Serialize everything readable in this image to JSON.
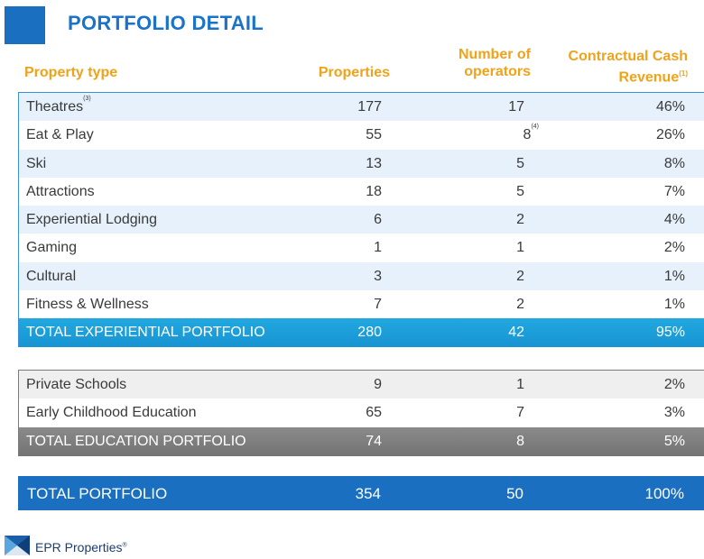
{
  "title": "PORTFOLIO DETAIL",
  "headers": {
    "type": "Property type",
    "properties": "Properties",
    "operators_line1": "Number of",
    "operators_line2": "operators",
    "revenue_line1": "Contractual Cash",
    "revenue_line2": "Revenue",
    "revenue_note": "(1)"
  },
  "experiential": {
    "rows": [
      {
        "name": "Theatres",
        "note": "(3)",
        "properties": "177",
        "operators": "17",
        "op_note": "",
        "revenue": "46%"
      },
      {
        "name": "Eat & Play",
        "note": "",
        "properties": "55",
        "operators": "8",
        "op_note": "(4)",
        "revenue": "26%"
      },
      {
        "name": "Ski",
        "note": "",
        "properties": "13",
        "operators": "5",
        "op_note": "",
        "revenue": "8%"
      },
      {
        "name": "Attractions",
        "note": "",
        "properties": "18",
        "operators": "5",
        "op_note": "",
        "revenue": "7%"
      },
      {
        "name": "Experiential Lodging",
        "note": "",
        "properties": "6",
        "operators": "2",
        "op_note": "",
        "revenue": "4%"
      },
      {
        "name": "Gaming",
        "note": "",
        "properties": "1",
        "operators": "1",
        "op_note": "",
        "revenue": "2%"
      },
      {
        "name": "Cultural",
        "note": "",
        "properties": "3",
        "operators": "2",
        "op_note": "",
        "revenue": "1%"
      },
      {
        "name": "Fitness & Wellness",
        "note": "",
        "properties": "7",
        "operators": "2",
        "op_note": "",
        "revenue": "1%"
      }
    ],
    "total": {
      "name": "TOTAL EXPERIENTIAL PORTFOLIO",
      "properties": "280",
      "operators": "42",
      "revenue": "95%"
    }
  },
  "education": {
    "rows": [
      {
        "name": "Private Schools",
        "properties": "9",
        "operators": "1",
        "revenue": "2%"
      },
      {
        "name": "Early Childhood Education",
        "properties": "65",
        "operators": "7",
        "revenue": "3%"
      }
    ],
    "total": {
      "name": "TOTAL EDUCATION PORTFOLIO",
      "properties": "74",
      "operators": "8",
      "revenue": "5%"
    }
  },
  "grand_total": {
    "name": "TOTAL PORTFOLIO",
    "properties": "354",
    "operators": "50",
    "revenue": "100%"
  },
  "logo": {
    "text": "EPR Properties",
    "mark": "®"
  },
  "colors": {
    "accent_blue": "#1a6fc1",
    "header_orange": "#f0a21a",
    "total_experiential": "#1794d2",
    "total_education": "#7a7a7a"
  }
}
